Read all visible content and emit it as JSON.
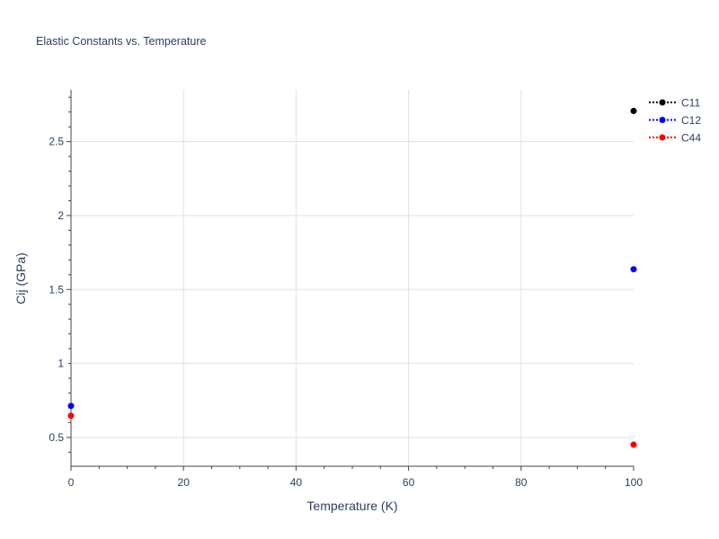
{
  "chart_data": {
    "type": "scatter",
    "title": "Elastic Constants vs. Temperature",
    "xlabel": "Temperature (K)",
    "ylabel": "Cij (GPa)",
    "xlim": [
      0,
      100
    ],
    "ylim": [
      0.305,
      2.85
    ],
    "xticks": [
      "0",
      "20",
      "40",
      "60",
      "80",
      "100"
    ],
    "yticks": [
      "0.5",
      "1",
      "1.5",
      "2",
      "2.5"
    ],
    "grid": true,
    "legend_placement": "top-right",
    "x": [
      0,
      100
    ],
    "series": [
      {
        "name": "C11",
        "color": "#000000",
        "line_style": "dotted",
        "values": [
          null,
          2.707
        ]
      },
      {
        "name": "C12",
        "color": "#0000ff",
        "line_style": "dotted",
        "values": [
          0.713,
          1.637
        ]
      },
      {
        "name": "C44",
        "color": "#ff0000",
        "line_style": "dotted",
        "values": [
          0.646,
          0.451
        ]
      }
    ]
  }
}
